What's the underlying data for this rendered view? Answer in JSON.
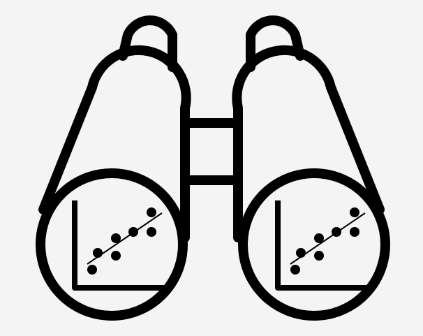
{
  "icon": {
    "name": "binoculars-scatter-plot-icon",
    "colors": {
      "background": "#f4f4f4",
      "ink": "#000000"
    }
  }
}
